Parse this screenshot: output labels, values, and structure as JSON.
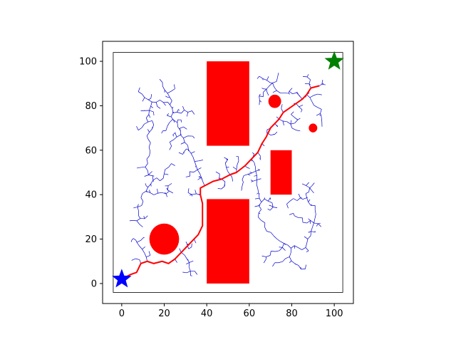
{
  "chart_data": {
    "type": "scatter",
    "title": "",
    "xlabel": "",
    "ylabel": "",
    "xlim": [
      -9,
      109
    ],
    "ylim": [
      -9,
      109
    ],
    "x_ticks": [
      0,
      20,
      40,
      60,
      80,
      100
    ],
    "y_ticks": [
      0,
      20,
      40,
      60,
      80,
      100
    ],
    "x_tick_labels": [
      "0",
      "20",
      "40",
      "60",
      "80",
      "100"
    ],
    "y_tick_labels": [
      "0",
      "20",
      "40",
      "60",
      "80",
      "100"
    ],
    "grid": false,
    "boundary": {
      "x": [
        -4,
        104
      ],
      "y": [
        -4,
        104
      ]
    },
    "start": {
      "x": 0,
      "y": 2,
      "color": "#0000ff"
    },
    "goal": {
      "x": 100,
      "y": 100,
      "color": "#008000"
    },
    "obstacle_color": "#ff0000",
    "tree_color": "#0000cc",
    "path_color": "#ff0000",
    "obstacles": [
      {
        "shape": "rect",
        "x": 40,
        "y": 62,
        "w": 20,
        "h": 38
      },
      {
        "shape": "rect",
        "x": 40,
        "y": 0,
        "w": 20,
        "h": 38
      },
      {
        "shape": "rect",
        "x": 70,
        "y": 40,
        "w": 10,
        "h": 20
      },
      {
        "shape": "circle",
        "cx": 20,
        "cy": 20,
        "r": 7
      },
      {
        "shape": "circle",
        "cx": 72,
        "cy": 82,
        "r": 3
      },
      {
        "shape": "circle",
        "cx": 90,
        "cy": 70,
        "r": 2
      }
    ],
    "path": [
      [
        0,
        2
      ],
      [
        4,
        4
      ],
      [
        7,
        5
      ],
      [
        9,
        9
      ],
      [
        12,
        10
      ],
      [
        15,
        9
      ],
      [
        19,
        10
      ],
      [
        22,
        9
      ],
      [
        25,
        11
      ],
      [
        28,
        14
      ],
      [
        31,
        17
      ],
      [
        34,
        20
      ],
      [
        36,
        22
      ],
      [
        38,
        26
      ],
      [
        38,
        31
      ],
      [
        38,
        36
      ],
      [
        37,
        40
      ],
      [
        37,
        43
      ],
      [
        39,
        44
      ],
      [
        43,
        46
      ],
      [
        47,
        47
      ],
      [
        51,
        49
      ],
      [
        54,
        50
      ],
      [
        58,
        53
      ],
      [
        61,
        56
      ],
      [
        64,
        59
      ],
      [
        66,
        63
      ],
      [
        68,
        66
      ],
      [
        70,
        70
      ],
      [
        72,
        72
      ],
      [
        74,
        74
      ],
      [
        76,
        77
      ],
      [
        79,
        79
      ],
      [
        82,
        81
      ],
      [
        85,
        83
      ],
      [
        87,
        85
      ],
      [
        89,
        88
      ],
      [
        93,
        89
      ]
    ],
    "tree_regions": [
      {
        "x": [
          2,
          30
        ],
        "y": [
          80,
          95
        ]
      },
      {
        "x": [
          5,
          38
        ],
        "y": [
          60,
          80
        ]
      },
      {
        "x": [
          3,
          20
        ],
        "y": [
          30,
          52
        ]
      },
      {
        "x": [
          20,
          38
        ],
        "y": [
          38,
          60
        ]
      },
      {
        "x": [
          2,
          14
        ],
        "y": [
          10,
          32
        ]
      },
      {
        "x": [
          26,
          38
        ],
        "y": [
          3,
          20
        ]
      },
      {
        "x": [
          60,
          68
        ],
        "y": [
          25,
          62
        ]
      },
      {
        "x": [
          62,
          90
        ],
        "y": [
          3,
          18
        ]
      },
      {
        "x": [
          80,
          96
        ],
        "y": [
          22,
          50
        ]
      },
      {
        "x": [
          68,
          96
        ],
        "y": [
          66,
          96
        ]
      },
      {
        "x": [
          60,
          70
        ],
        "y": [
          78,
          96
        ]
      },
      {
        "x": [
          44,
          62
        ],
        "y": [
          40,
          60
        ]
      },
      {
        "x": [
          62,
          80
        ],
        "y": [
          30,
          42
        ]
      }
    ]
  }
}
